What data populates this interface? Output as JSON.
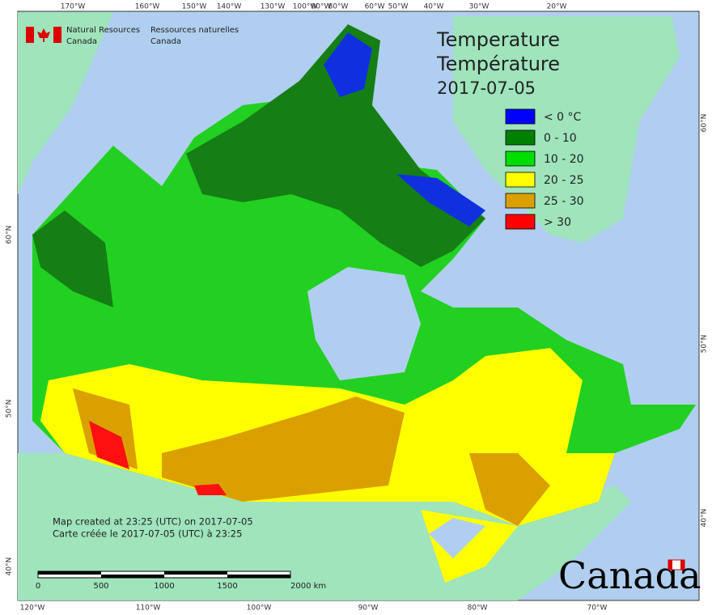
{
  "header": {
    "agency_en": [
      "Natural Resources",
      "Canada"
    ],
    "agency_fr": [
      "Ressources naturelles",
      "Canada"
    ]
  },
  "title": [
    "Temperature",
    "Température",
    "2017-07-05"
  ],
  "legend": [
    {
      "label": "< 0 °C",
      "color": "#0000ff"
    },
    {
      "label": "0 - 10",
      "color": "#008000"
    },
    {
      "label": "10 - 20",
      "color": "#00dd00"
    },
    {
      "label": "20 - 25",
      "color": "#ffff00"
    },
    {
      "label": "25 - 30",
      "color": "#daa000"
    },
    {
      "label": "> 30",
      "color": "#ff0000"
    }
  ],
  "graticule": {
    "top": [
      "170°W",
      "160°W",
      "150°W",
      "140°W",
      "130°W",
      "100°W",
      "90°W",
      "80°W",
      "60°W",
      "50°W",
      "40°W",
      "30°W",
      "20°W"
    ],
    "bottom": [
      "120°W",
      "110°W",
      "100°W",
      "90°W",
      "80°W",
      "70°W"
    ],
    "left": [
      "60°N",
      "50°N",
      "40°N"
    ],
    "right": [
      "60°N",
      "50°N",
      "40°N"
    ]
  },
  "notes": [
    "Map created at 23:25 (UTC) on 2017-07-05",
    "Carte créée le 2017-07-05 (UTC) à 23:25"
  ],
  "scale_bar": [
    "0",
    "500",
    "1000",
    "1500",
    "2000 km"
  ],
  "wordmark": "Canada"
}
